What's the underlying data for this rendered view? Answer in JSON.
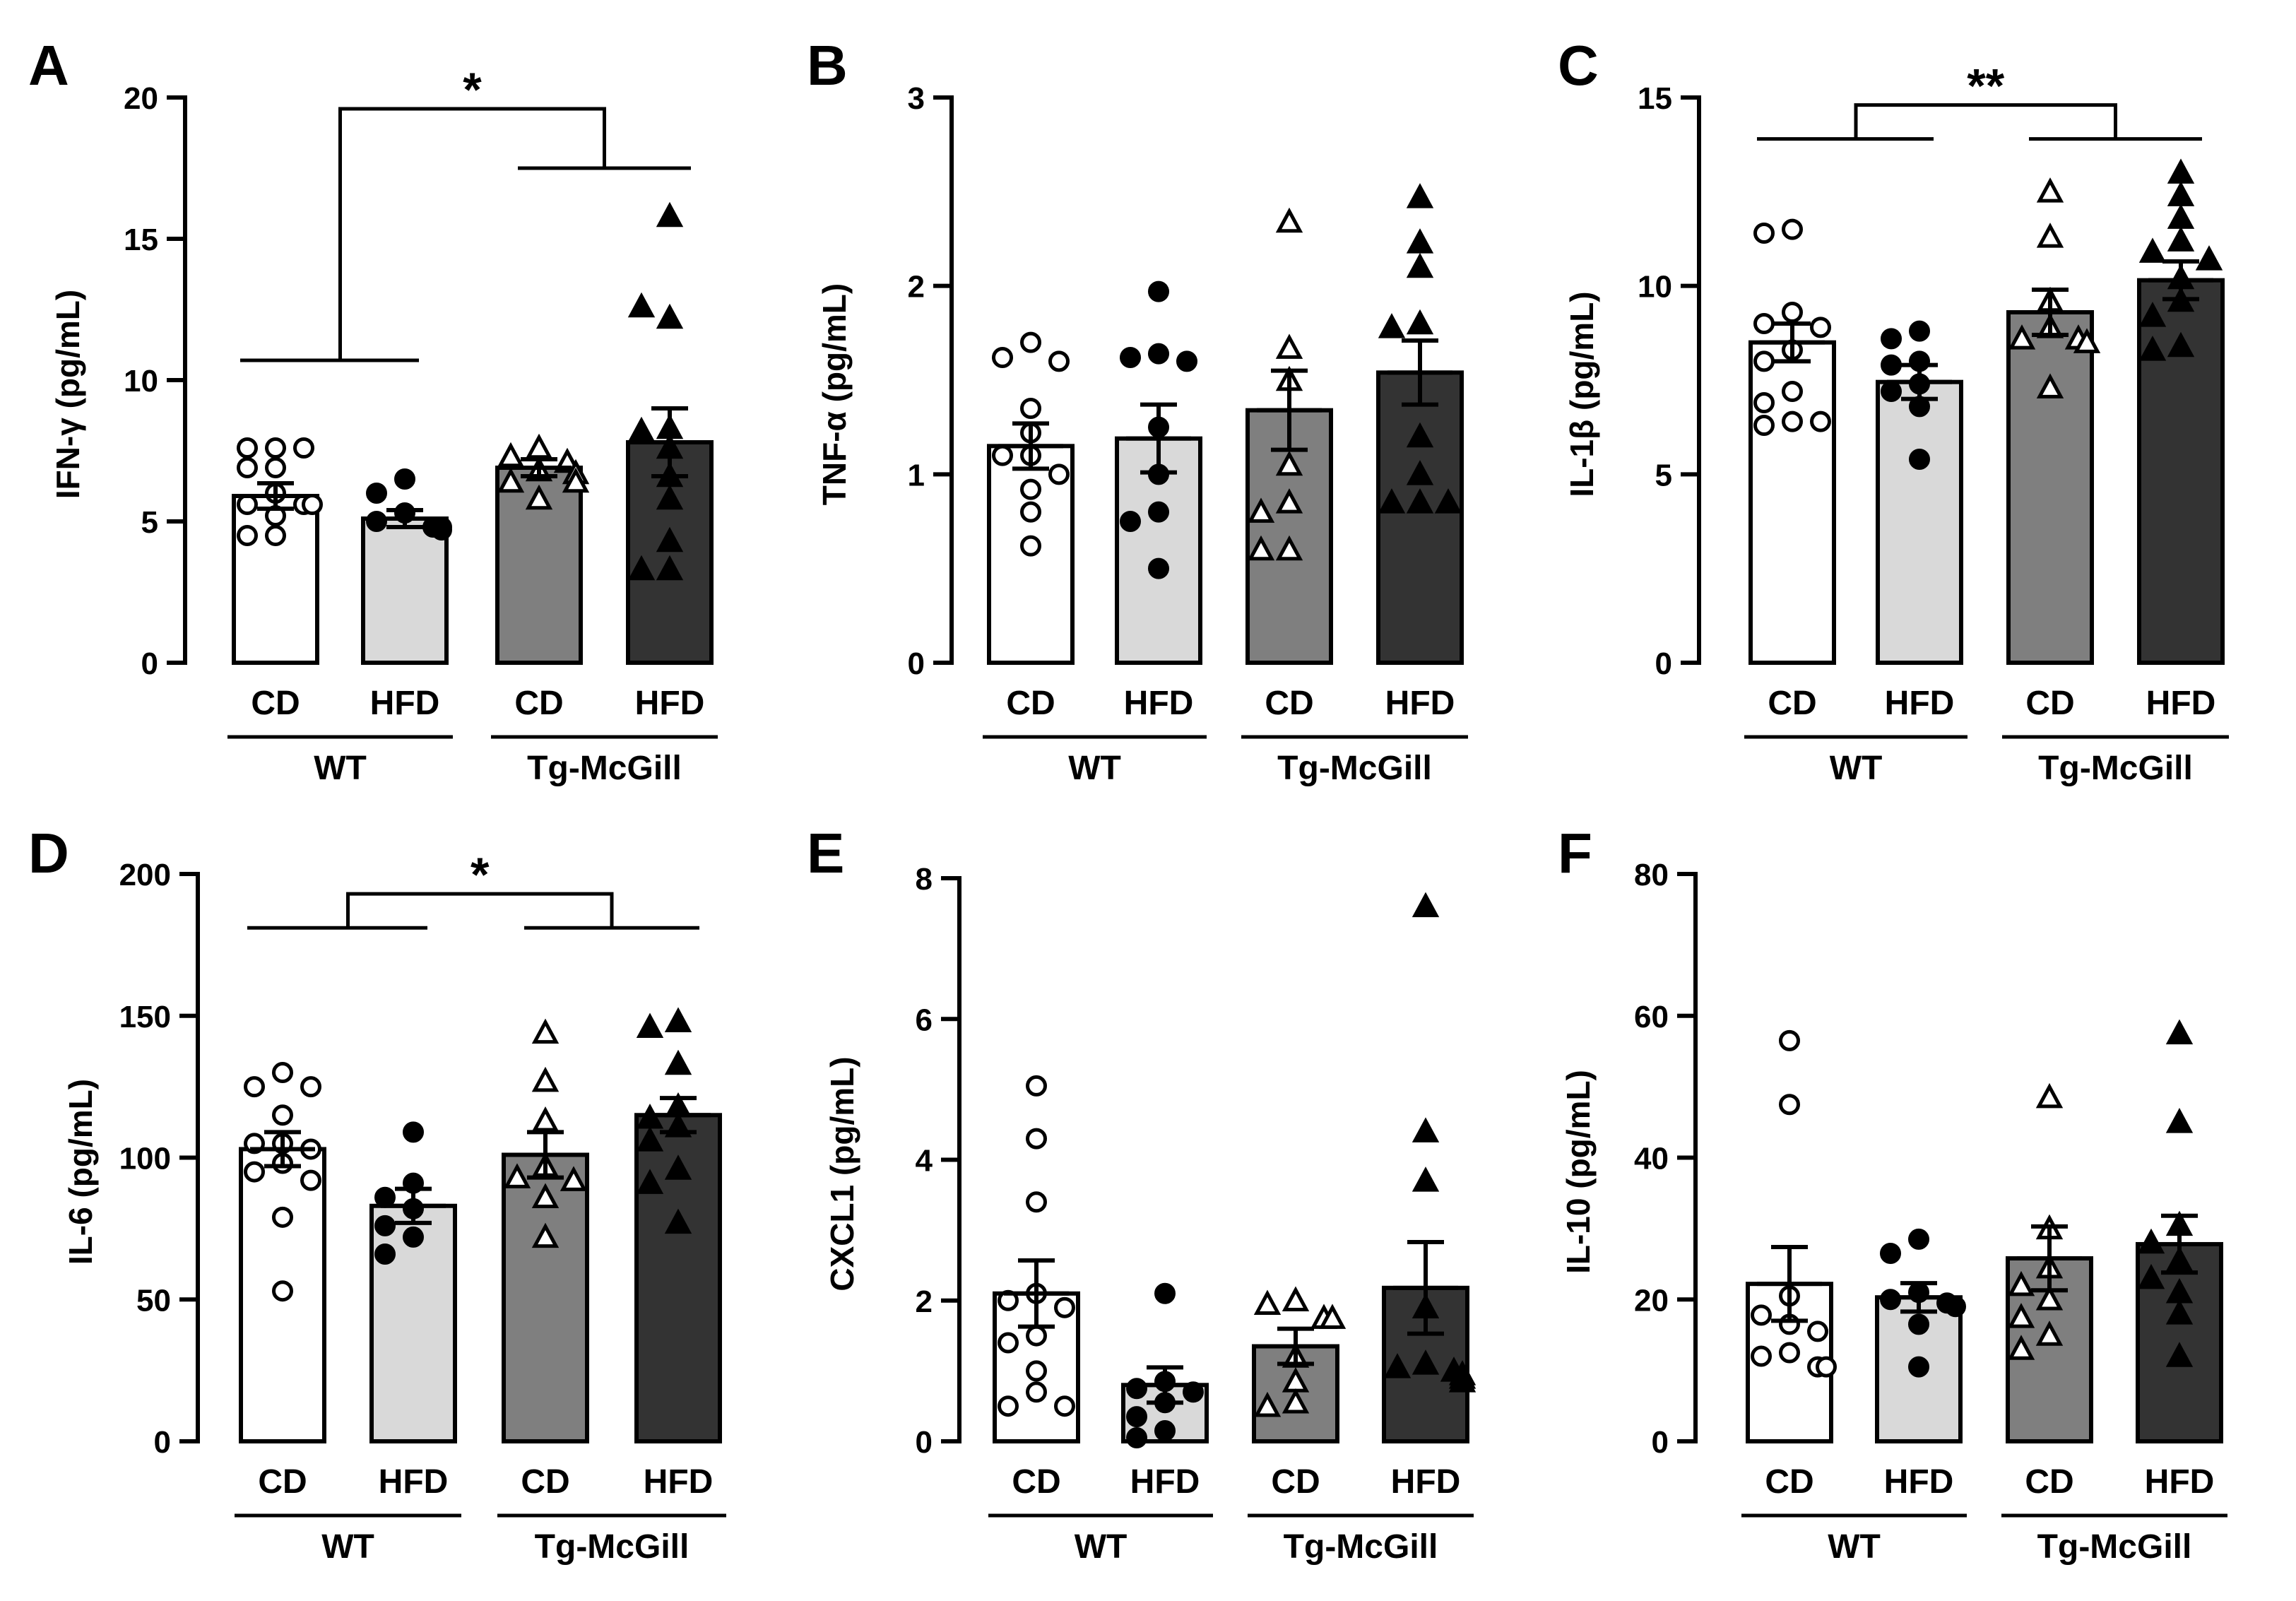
{
  "colors": {
    "WT_CD": "#ffffff",
    "WT_HFD": "#d9d9d9",
    "Tg_CD": "#7f7f7f",
    "Tg_HFD": "#333333",
    "axis": "#000000"
  },
  "markers": {
    "WT_CD": "open-circle",
    "WT_HFD": "filled-circle",
    "Tg_CD": "open-triangle",
    "Tg_HFD": "filled-triangle"
  },
  "chart_data": [
    {
      "type": "bar",
      "panel": "A",
      "ylabel": "IFN-γ (pg/mL)",
      "categories": [
        "CD",
        "HFD",
        "CD",
        "HFD"
      ],
      "genotypes": [
        "WT",
        "Tg-McGill"
      ],
      "ylim": [
        0,
        20
      ],
      "yticks": [
        0,
        5,
        10,
        15,
        20
      ],
      "means": [
        5.9,
        5.1,
        6.9,
        7.8
      ],
      "sem": [
        0.45,
        0.3,
        0.3,
        1.2
      ],
      "points": [
        [
          7.6,
          7.6,
          7.6,
          6.9,
          6.9,
          6.0,
          5.6,
          5.6,
          5.6,
          5.2,
          4.5,
          4.5
        ],
        [
          6.5,
          6.0,
          5.3,
          5.0,
          4.8,
          4.8,
          4.7
        ],
        [
          7.6,
          7.3,
          7.1,
          6.8,
          6.7,
          6.4,
          6.4,
          5.8
        ],
        [
          15.8,
          12.2,
          12.6,
          8.3,
          8.2,
          7.6,
          6.6,
          5.8,
          4.3,
          3.3,
          3.3
        ]
      ],
      "significance": {
        "label": "*",
        "left": [
          0,
          1
        ],
        "right": [
          2,
          3
        ],
        "left_y": 10.7,
        "right_y": 17.5,
        "top_y": 19.6
      }
    },
    {
      "type": "bar",
      "panel": "B",
      "ylabel": "TNF-α (pg/mL)",
      "categories": [
        "CD",
        "HFD",
        "CD",
        "HFD"
      ],
      "genotypes": [
        "WT",
        "Tg-McGill"
      ],
      "ylim": [
        0,
        3
      ],
      "yticks": [
        0,
        1,
        2,
        3
      ],
      "means": [
        1.15,
        1.19,
        1.34,
        1.54
      ],
      "sem": [
        0.12,
        0.18,
        0.21,
        0.17
      ],
      "points": [
        [
          1.7,
          1.62,
          1.6,
          1.35,
          1.22,
          1.1,
          1.1,
          1.0,
          0.92,
          0.8,
          0.62
        ],
        [
          1.97,
          1.64,
          1.62,
          1.6,
          1.25,
          1.0,
          0.8,
          0.75,
          0.5
        ],
        [
          2.34,
          1.67,
          1.5,
          1.05,
          0.85,
          0.8,
          0.6,
          0.6
        ],
        [
          2.47,
          2.23,
          2.1,
          1.8,
          1.78,
          1.2,
          1.0,
          0.85,
          0.85,
          0.85
        ]
      ]
    },
    {
      "type": "bar",
      "panel": "C",
      "ylabel": "IL-1β (pg/mL)",
      "categories": [
        "CD",
        "HFD",
        "CD",
        "HFD"
      ],
      "genotypes": [
        "WT",
        "Tg-McGill"
      ],
      "ylim": [
        0,
        15
      ],
      "yticks": [
        0,
        5,
        10,
        15
      ],
      "means": [
        8.5,
        7.45,
        9.3,
        10.15
      ],
      "sem": [
        0.5,
        0.45,
        0.6,
        0.5
      ],
      "points": [
        [
          11.5,
          11.4,
          9.3,
          9.0,
          8.9,
          8.3,
          8.0,
          7.2,
          6.9,
          6.4,
          6.4,
          6.3
        ],
        [
          8.8,
          8.6,
          8.0,
          7.9,
          7.4,
          7.2,
          6.8,
          5.4
        ],
        [
          12.5,
          11.3,
          9.6,
          8.9,
          8.6,
          8.6,
          8.5,
          7.3
        ],
        [
          13.0,
          12.4,
          11.8,
          11.2,
          10.9,
          10.7,
          10.2,
          9.6,
          9.2,
          8.4,
          8.3
        ]
      ],
      "significance": {
        "label": "**",
        "left": [
          0,
          1
        ],
        "right": [
          2,
          3
        ],
        "left_y": 13.9,
        "right_y": 13.9,
        "top_y": 14.8
      }
    },
    {
      "type": "bar",
      "panel": "D",
      "ylabel": "IL-6 (pg/mL)",
      "categories": [
        "CD",
        "HFD",
        "CD",
        "HFD"
      ],
      "genotypes": [
        "WT",
        "Tg-McGill"
      ],
      "ylim": [
        0,
        200
      ],
      "yticks": [
        0,
        50,
        100,
        150,
        200
      ],
      "means": [
        103,
        83,
        101,
        115
      ],
      "sem": [
        6,
        6,
        8,
        6
      ],
      "points": [
        [
          130,
          125,
          125,
          115,
          105,
          105,
          103,
          98,
          95,
          92,
          79,
          53
        ],
        [
          109,
          91,
          86,
          82,
          76,
          72,
          66
        ],
        [
          144,
          127,
          113,
          97,
          93,
          92,
          86,
          72
        ],
        [
          148,
          146,
          133,
          118,
          114,
          111,
          106,
          96,
          91,
          77
        ]
      ],
      "significance": {
        "label": "*",
        "left": [
          0,
          1
        ],
        "right": [
          2,
          3
        ],
        "left_y": 181,
        "right_y": 181,
        "top_y": 193
      }
    },
    {
      "type": "bar",
      "panel": "E",
      "ylabel": "CXCL1 (pg/mL)",
      "categories": [
        "CD",
        "HFD",
        "CD",
        "HFD"
      ],
      "genotypes": [
        "WT",
        "Tg-McGill"
      ],
      "ylim": [
        0,
        8
      ],
      "yticks": [
        0,
        2,
        4,
        6,
        8
      ],
      "means": [
        2.1,
        0.8,
        1.35,
        2.18
      ],
      "sem": [
        0.47,
        0.25,
        0.25,
        0.65
      ],
      "points": [
        [
          5.05,
          4.3,
          3.4,
          2.1,
          2.0,
          1.9,
          1.5,
          1.4,
          1.0,
          0.7,
          0.5,
          0.5
        ],
        [
          2.1,
          0.85,
          0.75,
          0.7,
          0.55,
          0.35,
          0.15,
          0.05
        ],
        [
          2.0,
          1.95,
          1.75,
          1.75,
          1.2,
          0.85,
          0.55,
          0.5
        ],
        [
          7.6,
          4.4,
          3.7,
          1.9,
          1.1,
          1.05,
          1.0,
          0.95,
          0.9,
          0.85
        ]
      ]
    },
    {
      "type": "bar",
      "panel": "F",
      "ylabel": "IL-10 (pg/mL)",
      "categories": [
        "CD",
        "HFD",
        "CD",
        "HFD"
      ],
      "genotypes": [
        "WT",
        "Tg-McGill"
      ],
      "ylim": [
        0,
        80
      ],
      "yticks": [
        0,
        20,
        40,
        60,
        80
      ],
      "means": [
        22.2,
        20.3,
        25.8,
        27.8
      ],
      "sem": [
        5.2,
        2.0,
        4.5,
        4.0
      ],
      "points": [
        [
          56.5,
          47.5,
          20.5,
          17.8,
          16.5,
          15.5,
          12.5,
          12.0,
          10.5,
          10.5
        ],
        [
          28.5,
          26.5,
          21.0,
          20.0,
          19.5,
          19.0,
          16.5,
          10.5
        ],
        [
          48.5,
          30.0,
          24.5,
          22.0,
          20.0,
          17.5,
          15.0,
          13.0
        ],
        [
          57.5,
          45.0,
          30.5,
          28.0,
          25.5,
          23.0,
          21.0,
          18.0,
          12.0
        ]
      ]
    }
  ]
}
